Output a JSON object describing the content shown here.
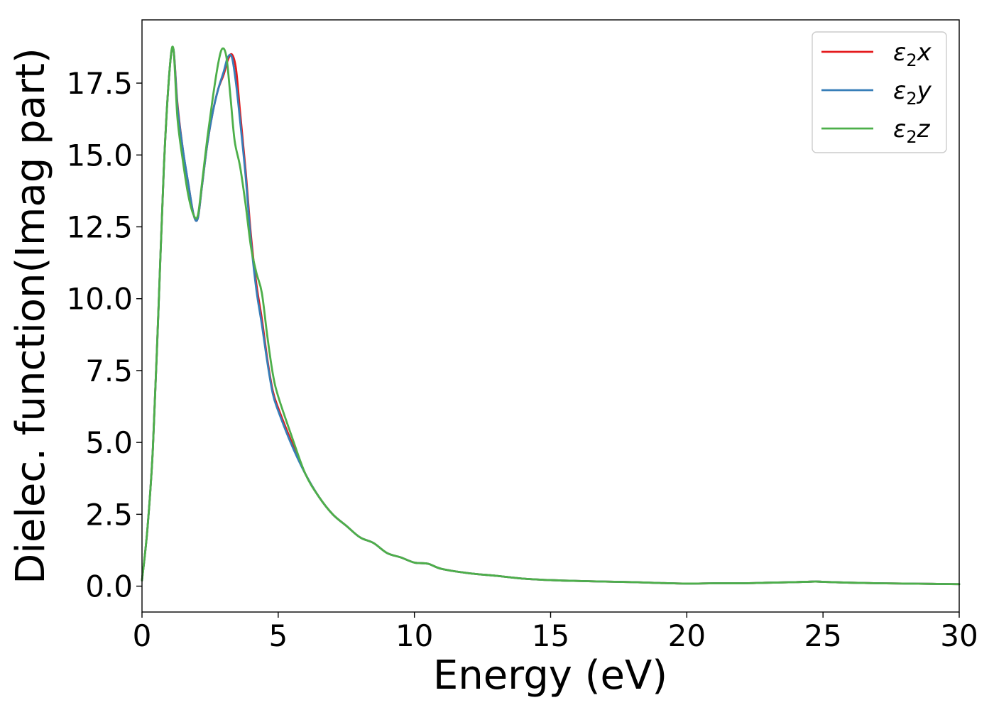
{
  "chart_data": {
    "type": "line",
    "title": "",
    "xlabel": "Energy (eV)",
    "ylabel": "Dielec. function(Imag part)",
    "xlim": [
      0,
      30
    ],
    "ylim": [
      -0.9,
      19.7
    ],
    "xticks": [
      0,
      5,
      10,
      15,
      20,
      25,
      30
    ],
    "xtick_labels": [
      "0",
      "5",
      "10",
      "15",
      "20",
      "25",
      "30"
    ],
    "yticks": [
      0.0,
      2.5,
      5.0,
      7.5,
      10.0,
      12.5,
      15.0,
      17.5
    ],
    "ytick_labels": [
      "0.0",
      "2.5",
      "5.0",
      "7.5",
      "10.0",
      "12.5",
      "15.0",
      "17.5"
    ],
    "grid": false,
    "legend_position": "top-right",
    "series": [
      {
        "name": "ε₂x",
        "legend_base": "ε",
        "legend_sub": "2",
        "legend_suffix": "x",
        "color": "#e41a1c",
        "x": [
          0,
          0.2,
          0.4,
          0.6,
          0.8,
          1.0,
          1.15,
          1.3,
          1.5,
          1.7,
          1.9,
          2.05,
          2.2,
          2.4,
          2.6,
          2.8,
          3.0,
          3.15,
          3.3,
          3.45,
          3.6,
          3.8,
          4.0,
          4.2,
          4.4,
          4.6,
          4.8,
          5.0,
          5.5,
          6.0,
          6.5,
          7.0,
          7.5,
          8.0,
          8.5,
          9.0,
          9.5,
          10.0,
          10.5,
          11.0,
          12.0,
          13.0,
          14.0,
          15.0,
          16.0,
          17.0,
          18.0,
          19.0,
          20.0,
          21.0,
          22.0,
          23.0,
          24.0,
          24.7,
          25.0,
          26.0,
          27.0,
          28.0,
          29.0,
          30.0
        ],
        "y": [
          0.2,
          2.0,
          4.8,
          9.5,
          14.5,
          17.8,
          18.7,
          16.8,
          15.2,
          14.0,
          12.9,
          12.8,
          13.9,
          15.4,
          16.5,
          17.3,
          17.8,
          18.3,
          18.5,
          18.0,
          16.5,
          14.5,
          12.2,
          10.5,
          9.3,
          7.9,
          6.8,
          6.2,
          5.0,
          3.9,
          3.1,
          2.5,
          2.1,
          1.7,
          1.5,
          1.15,
          1.0,
          0.82,
          0.78,
          0.6,
          0.45,
          0.36,
          0.26,
          0.21,
          0.18,
          0.16,
          0.14,
          0.11,
          0.09,
          0.1,
          0.1,
          0.12,
          0.14,
          0.16,
          0.15,
          0.12,
          0.1,
          0.09,
          0.08,
          0.07
        ]
      },
      {
        "name": "ε₂y",
        "legend_base": "ε",
        "legend_sub": "2",
        "legend_suffix": "y",
        "color": "#377eb8",
        "x": [
          0,
          0.2,
          0.4,
          0.6,
          0.8,
          1.0,
          1.15,
          1.3,
          1.5,
          1.7,
          1.9,
          2.05,
          2.2,
          2.4,
          2.6,
          2.8,
          3.0,
          3.15,
          3.3,
          3.45,
          3.6,
          3.8,
          4.0,
          4.2,
          4.4,
          4.6,
          4.8,
          5.0,
          5.5,
          6.0,
          6.5,
          7.0,
          7.5,
          8.0,
          8.5,
          9.0,
          9.5,
          10.0,
          10.5,
          11.0,
          12.0,
          13.0,
          14.0,
          15.0,
          16.0,
          17.0,
          18.0,
          19.0,
          20.0,
          21.0,
          22.0,
          23.0,
          24.0,
          24.7,
          25.0,
          26.0,
          27.0,
          28.0,
          29.0,
          30.0
        ],
        "y": [
          0.2,
          2.0,
          4.8,
          9.5,
          14.5,
          17.8,
          18.7,
          16.7,
          15.2,
          14.0,
          12.9,
          12.8,
          13.9,
          15.4,
          16.5,
          17.3,
          17.9,
          18.4,
          18.4,
          17.5,
          16.2,
          14.3,
          12.0,
          10.3,
          9.1,
          7.8,
          6.7,
          6.1,
          4.9,
          3.9,
          3.1,
          2.5,
          2.1,
          1.7,
          1.5,
          1.15,
          1.0,
          0.82,
          0.78,
          0.6,
          0.45,
          0.36,
          0.26,
          0.21,
          0.18,
          0.16,
          0.14,
          0.11,
          0.09,
          0.1,
          0.1,
          0.12,
          0.14,
          0.16,
          0.15,
          0.12,
          0.1,
          0.09,
          0.08,
          0.07
        ]
      },
      {
        "name": "ε₂z",
        "legend_base": "ε",
        "legend_sub": "2",
        "legend_suffix": "z",
        "color": "#4daf4a",
        "x": [
          0,
          0.2,
          0.4,
          0.6,
          0.8,
          1.0,
          1.15,
          1.3,
          1.5,
          1.7,
          1.9,
          2.05,
          2.2,
          2.4,
          2.6,
          2.8,
          2.95,
          3.1,
          3.25,
          3.4,
          3.6,
          3.8,
          4.0,
          4.2,
          4.4,
          4.6,
          4.8,
          5.0,
          5.5,
          6.0,
          6.5,
          7.0,
          7.5,
          8.0,
          8.5,
          9.0,
          9.5,
          10.0,
          10.5,
          11.0,
          12.0,
          13.0,
          14.0,
          15.0,
          16.0,
          17.0,
          18.0,
          19.0,
          20.0,
          21.0,
          22.0,
          23.0,
          24.0,
          24.7,
          25.0,
          26.0,
          27.0,
          28.0,
          29.0,
          30.0
        ],
        "y": [
          0.2,
          2.0,
          4.8,
          9.5,
          14.5,
          17.8,
          18.7,
          16.3,
          14.8,
          13.6,
          12.9,
          12.9,
          14.0,
          15.6,
          17.0,
          18.2,
          18.7,
          18.4,
          17.0,
          15.5,
          14.6,
          13.3,
          11.8,
          10.9,
          10.2,
          8.7,
          7.4,
          6.6,
          5.2,
          3.9,
          3.1,
          2.5,
          2.1,
          1.7,
          1.5,
          1.15,
          1.0,
          0.82,
          0.78,
          0.6,
          0.45,
          0.36,
          0.26,
          0.21,
          0.18,
          0.16,
          0.14,
          0.11,
          0.09,
          0.1,
          0.1,
          0.12,
          0.14,
          0.16,
          0.15,
          0.12,
          0.1,
          0.09,
          0.08,
          0.07
        ]
      }
    ]
  }
}
